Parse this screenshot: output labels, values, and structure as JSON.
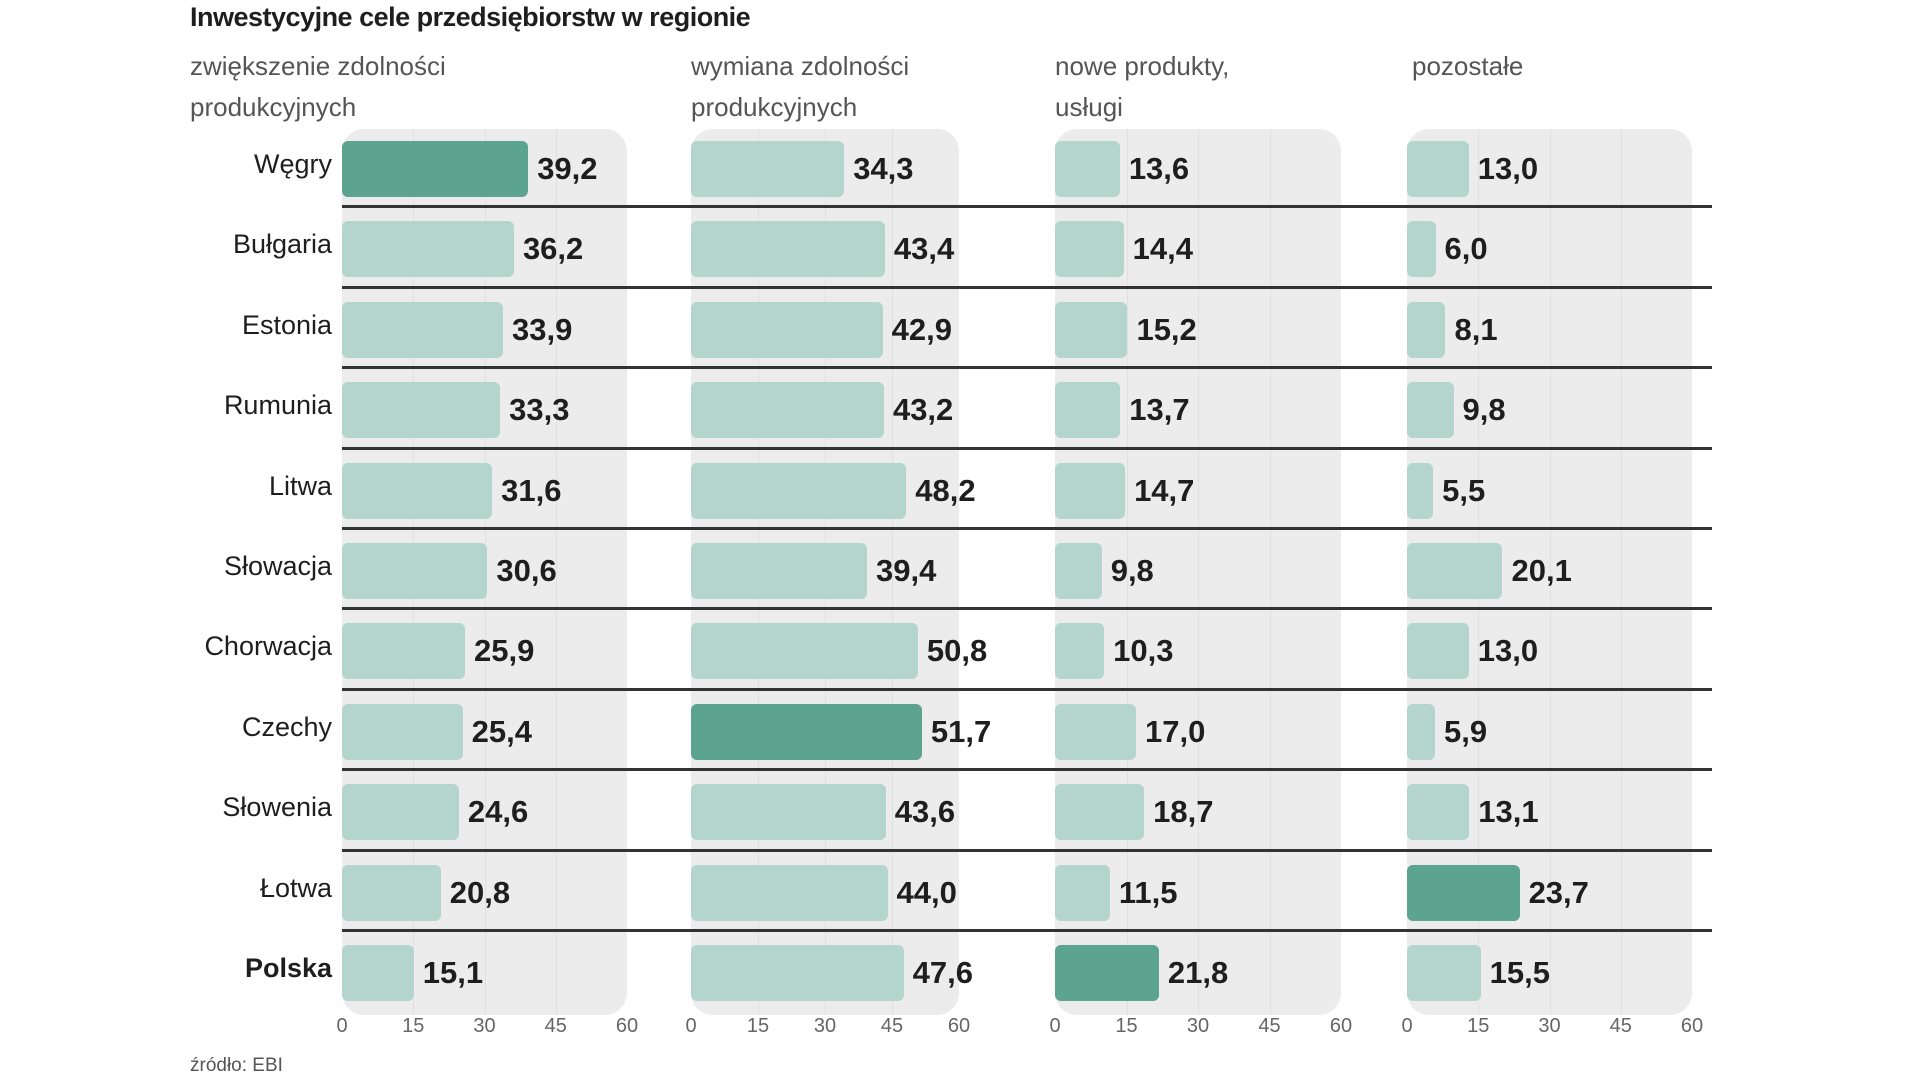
{
  "chart_data": {
    "type": "bar",
    "orientation": "horizontal",
    "title": "Inwestycyjne cele przedsiębiorstw w regionie",
    "source": "źródło: EBI",
    "categories": [
      "Węgry",
      "Bułgaria",
      "Estonia",
      "Rumunia",
      "Litwa",
      "Słowacja",
      "Chorwacja",
      "Czechy",
      "Słowenia",
      "Łotwa",
      "Polska"
    ],
    "highlight_category": "Polska",
    "xlim": [
      0,
      60
    ],
    "ticks": [
      "0",
      "15",
      "30",
      "45",
      "60"
    ],
    "colors": {
      "bar": "#b3d5cb",
      "bar_highlight": "#5ca48f",
      "panel": "#ececec"
    },
    "series": [
      {
        "name": "zwiększenie zdolności produkcyjnych",
        "name_lines": [
          "zwiększenie zdolności",
          "produkcyjnych"
        ],
        "values": [
          39.2,
          36.2,
          33.9,
          33.3,
          31.6,
          30.6,
          25.9,
          25.4,
          24.6,
          20.8,
          15.1
        ],
        "labels": [
          "39,2",
          "36,2",
          "33,9",
          "33,3",
          "31,6",
          "30,6",
          "25,9",
          "25,4",
          "24,6",
          "20,8",
          "15,1"
        ],
        "highlight_index": 0
      },
      {
        "name": "wymiana zdolności produkcyjnych",
        "name_lines": [
          "wymiana zdolności",
          "produkcyjnych"
        ],
        "values": [
          34.3,
          43.4,
          42.9,
          43.2,
          48.2,
          39.4,
          50.8,
          51.7,
          43.6,
          44.0,
          47.6
        ],
        "labels": [
          "34,3",
          "43,4",
          "42,9",
          "43,2",
          "48,2",
          "39,4",
          "50,8",
          "51,7",
          "43,6",
          "44,0",
          "47,6"
        ],
        "highlight_index": 7
      },
      {
        "name": "nowe produkty, usługi",
        "name_lines": [
          "nowe produkty,",
          "usługi"
        ],
        "values": [
          13.6,
          14.4,
          15.2,
          13.7,
          14.7,
          9.8,
          10.3,
          17.0,
          18.7,
          11.5,
          21.8
        ],
        "labels": [
          "13,6",
          "14,4",
          "15,2",
          "13,7",
          "14,7",
          "9,8",
          "10,3",
          "17,0",
          "18,7",
          "11,5",
          "21,8"
        ],
        "highlight_index": 10
      },
      {
        "name": "pozostałe",
        "name_lines": [
          "pozostałe",
          ""
        ],
        "values": [
          13.0,
          6.0,
          8.1,
          9.8,
          5.5,
          20.1,
          13.0,
          5.9,
          13.1,
          23.7,
          15.5
        ],
        "labels": [
          "13,0",
          "6,0",
          "8,1",
          "9,8",
          "5,5",
          "20,1",
          "13,0",
          "5,9",
          "13,1",
          "23,7",
          "15,5"
        ],
        "highlight_index": 9
      }
    ]
  }
}
